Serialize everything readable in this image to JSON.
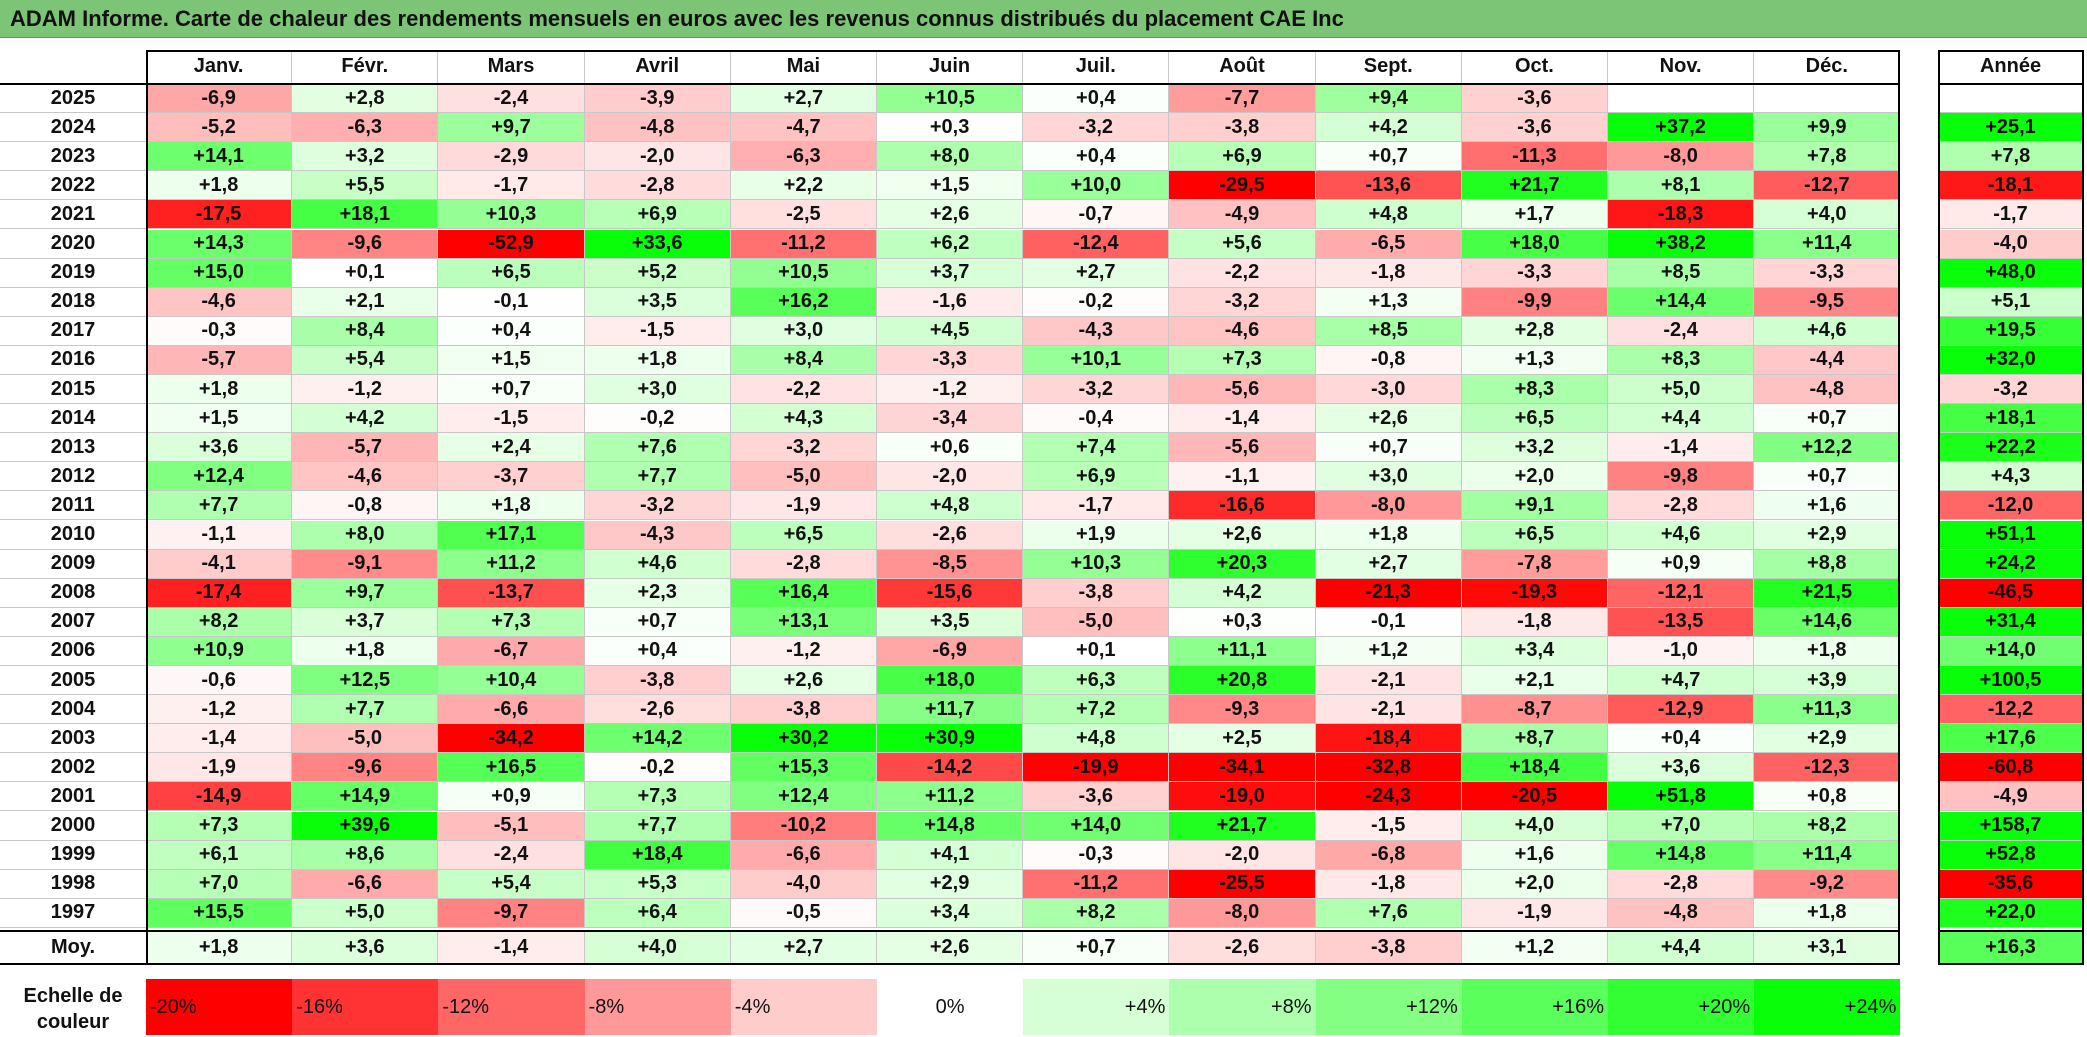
{
  "title": "ADAM Informe. Carte de chaleur des rendements mensuels en euros avec les revenus connus distribués du placement CAE Inc",
  "chart_data": {
    "type": "heatmap",
    "months": [
      "Janv.",
      "Févr.",
      "Mars",
      "Avril",
      "Mai",
      "Juin",
      "Juil.",
      "Août",
      "Sept.",
      "Oct.",
      "Nov.",
      "Déc."
    ],
    "year_header": "Année",
    "rows": [
      {
        "year": "2025",
        "values": [
          "-6,9",
          "+2,8",
          "-2,4",
          "-3,9",
          "+2,7",
          "+10,5",
          "+0,4",
          "-7,7",
          "+9,4",
          "-3,6",
          "",
          ""
        ],
        "annual": ""
      },
      {
        "year": "2024",
        "values": [
          "-5,2",
          "-6,3",
          "+9,7",
          "-4,8",
          "-4,7",
          "+0,3",
          "-3,2",
          "-3,8",
          "+4,2",
          "-3,6",
          "+37,2",
          "+9,9"
        ],
        "annual": "+25,1"
      },
      {
        "year": "2023",
        "values": [
          "+14,1",
          "+3,2",
          "-2,9",
          "-2,0",
          "-6,3",
          "+8,0",
          "+0,4",
          "+6,9",
          "+0,7",
          "-11,3",
          "-8,0",
          "+7,8"
        ],
        "annual": "+7,8"
      },
      {
        "year": "2022",
        "values": [
          "+1,8",
          "+5,5",
          "-1,7",
          "-2,8",
          "+2,2",
          "+1,5",
          "+10,0",
          "-29,5",
          "-13,6",
          "+21,7",
          "+8,1",
          "-12,7"
        ],
        "annual": "-18,1"
      },
      {
        "year": "2021",
        "values": [
          "-17,5",
          "+18,1",
          "+10,3",
          "+6,9",
          "-2,5",
          "+2,6",
          "-0,7",
          "-4,9",
          "+4,8",
          "+1,7",
          "-18,3",
          "+4,0"
        ],
        "annual": "-1,7"
      },
      {
        "year": "2020",
        "values": [
          "+14,3",
          "-9,6",
          "-52,9",
          "+33,6",
          "-11,2",
          "+6,2",
          "-12,4",
          "+5,6",
          "-6,5",
          "+18,0",
          "+38,2",
          "+11,4"
        ],
        "annual": "-4,0"
      },
      {
        "year": "2019",
        "values": [
          "+15,0",
          "+0,1",
          "+6,5",
          "+5,2",
          "+10,5",
          "+3,7",
          "+2,7",
          "-2,2",
          "-1,8",
          "-3,3",
          "+8,5",
          "-3,3"
        ],
        "annual": "+48,0"
      },
      {
        "year": "2018",
        "values": [
          "-4,6",
          "+2,1",
          "-0,1",
          "+3,5",
          "+16,2",
          "-1,6",
          "-0,2",
          "-3,2",
          "+1,3",
          "-9,9",
          "+14,4",
          "-9,5"
        ],
        "annual": "+5,1"
      },
      {
        "year": "2017",
        "values": [
          "-0,3",
          "+8,4",
          "+0,4",
          "-1,5",
          "+3,0",
          "+4,5",
          "-4,3",
          "-4,6",
          "+8,5",
          "+2,8",
          "-2,4",
          "+4,6"
        ],
        "annual": "+19,5"
      },
      {
        "year": "2016",
        "values": [
          "-5,7",
          "+5,4",
          "+1,5",
          "+1,8",
          "+8,4",
          "-3,3",
          "+10,1",
          "+7,3",
          "-0,8",
          "+1,3",
          "+8,3",
          "-4,4"
        ],
        "annual": "+32,0"
      },
      {
        "year": "2015",
        "values": [
          "+1,8",
          "-1,2",
          "+0,7",
          "+3,0",
          "-2,2",
          "-1,2",
          "-3,2",
          "-5,6",
          "-3,0",
          "+8,3",
          "+5,0",
          "-4,8"
        ],
        "annual": "-3,2"
      },
      {
        "year": "2014",
        "values": [
          "+1,5",
          "+4,2",
          "-1,5",
          "-0,2",
          "+4,3",
          "-3,4",
          "-0,4",
          "-1,4",
          "+2,6",
          "+6,5",
          "+4,4",
          "+0,7"
        ],
        "annual": "+18,1"
      },
      {
        "year": "2013",
        "values": [
          "+3,6",
          "-5,7",
          "+2,4",
          "+7,6",
          "-3,2",
          "+0,6",
          "+7,4",
          "-5,6",
          "+0,7",
          "+3,2",
          "-1,4",
          "+12,2"
        ],
        "annual": "+22,2"
      },
      {
        "year": "2012",
        "values": [
          "+12,4",
          "-4,6",
          "-3,7",
          "+7,7",
          "-5,0",
          "-2,0",
          "+6,9",
          "-1,1",
          "+3,0",
          "+2,0",
          "-9,8",
          "+0,7"
        ],
        "annual": "+4,3"
      },
      {
        "year": "2011",
        "values": [
          "+7,7",
          "-0,8",
          "+1,8",
          "-3,2",
          "-1,9",
          "+4,8",
          "-1,7",
          "-16,6",
          "-8,0",
          "+9,1",
          "-2,8",
          "+1,6"
        ],
        "annual": "-12,0"
      },
      {
        "year": "2010",
        "values": [
          "-1,1",
          "+8,0",
          "+17,1",
          "-4,3",
          "+6,5",
          "-2,6",
          "+1,9",
          "+2,6",
          "+1,8",
          "+6,5",
          "+4,6",
          "+2,9"
        ],
        "annual": "+51,1"
      },
      {
        "year": "2009",
        "values": [
          "-4,1",
          "-9,1",
          "+11,2",
          "+4,6",
          "-2,8",
          "-8,5",
          "+10,3",
          "+20,3",
          "+2,7",
          "-7,8",
          "+0,9",
          "+8,8"
        ],
        "annual": "+24,2"
      },
      {
        "year": "2008",
        "values": [
          "-17,4",
          "+9,7",
          "-13,7",
          "+2,3",
          "+16,4",
          "-15,6",
          "-3,8",
          "+4,2",
          "-21,3",
          "-19,3",
          "-12,1",
          "+21,5"
        ],
        "annual": "-46,5"
      },
      {
        "year": "2007",
        "values": [
          "+8,2",
          "+3,7",
          "+7,3",
          "+0,7",
          "+13,1",
          "+3,5",
          "-5,0",
          "+0,3",
          "-0,1",
          "-1,8",
          "-13,5",
          "+14,6"
        ],
        "annual": "+31,4"
      },
      {
        "year": "2006",
        "values": [
          "+10,9",
          "+1,8",
          "-6,7",
          "+0,4",
          "-1,2",
          "-6,9",
          "+0,1",
          "+11,1",
          "+1,2",
          "+3,4",
          "-1,0",
          "+1,8"
        ],
        "annual": "+14,0"
      },
      {
        "year": "2005",
        "values": [
          "-0,6",
          "+12,5",
          "+10,4",
          "-3,8",
          "+2,6",
          "+18,0",
          "+6,3",
          "+20,8",
          "-2,1",
          "+2,1",
          "+4,7",
          "+3,9"
        ],
        "annual": "+100,5"
      },
      {
        "year": "2004",
        "values": [
          "-1,2",
          "+7,7",
          "-6,6",
          "-2,6",
          "-3,8",
          "+11,7",
          "+7,2",
          "-9,3",
          "-2,1",
          "-8,7",
          "-12,9",
          "+11,3"
        ],
        "annual": "-12,2"
      },
      {
        "year": "2003",
        "values": [
          "-1,4",
          "-5,0",
          "-34,2",
          "+14,2",
          "+30,2",
          "+30,9",
          "+4,8",
          "+2,5",
          "-18,4",
          "+8,7",
          "+0,4",
          "+2,9"
        ],
        "annual": "+17,6"
      },
      {
        "year": "2002",
        "values": [
          "-1,9",
          "-9,6",
          "+16,5",
          "-0,2",
          "+15,3",
          "-14,2",
          "-19,9",
          "-34,1",
          "-32,8",
          "+18,4",
          "+3,6",
          "-12,3"
        ],
        "annual": "-60,8"
      },
      {
        "year": "2001",
        "values": [
          "-14,9",
          "+14,9",
          "+0,9",
          "+7,3",
          "+12,4",
          "+11,2",
          "-3,6",
          "-19,0",
          "-24,3",
          "-20,5",
          "+51,8",
          "+0,8"
        ],
        "annual": "-4,9"
      },
      {
        "year": "2000",
        "values": [
          "+7,3",
          "+39,6",
          "-5,1",
          "+7,7",
          "-10,2",
          "+14,8",
          "+14,0",
          "+21,7",
          "-1,5",
          "+4,0",
          "+7,0",
          "+8,2"
        ],
        "annual": "+158,7"
      },
      {
        "year": "1999",
        "values": [
          "+6,1",
          "+8,6",
          "-2,4",
          "+18,4",
          "-6,6",
          "+4,1",
          "-0,3",
          "-2,0",
          "-6,8",
          "+1,6",
          "+14,8",
          "+11,4"
        ],
        "annual": "+52,8"
      },
      {
        "year": "1998",
        "values": [
          "+7,0",
          "-6,6",
          "+5,4",
          "+5,3",
          "-4,0",
          "+2,9",
          "-11,2",
          "-25,5",
          "-1,8",
          "+2,0",
          "-2,8",
          "-9,2"
        ],
        "annual": "-35,6"
      },
      {
        "year": "1997",
        "values": [
          "+15,5",
          "+5,0",
          "-9,7",
          "+6,4",
          "-0,5",
          "+3,4",
          "+8,2",
          "-8,0",
          "+7,6",
          "-1,9",
          "-4,8",
          "+1,8"
        ],
        "annual": "+22,0"
      }
    ],
    "average": {
      "label": "Moy.",
      "values": [
        "+1,8",
        "+3,6",
        "-1,4",
        "+4,0",
        "+2,7",
        "+2,6",
        "+0,7",
        "-2,6",
        "-3,8",
        "+1,2",
        "+4,4",
        "+3,1"
      ],
      "annual": "+16,3"
    },
    "color_scale": {
      "label": "Echelle de couleur",
      "stops": [
        {
          "label": "-20%",
          "value": -20,
          "color": "#ff0000"
        },
        {
          "label": "-16%",
          "value": -16,
          "color": "#ff3333"
        },
        {
          "label": "-12%",
          "value": -12,
          "color": "#ff6666"
        },
        {
          "label": "-8%",
          "value": -8,
          "color": "#ff9999"
        },
        {
          "label": "-4%",
          "value": -4,
          "color": "#ffcccc"
        },
        {
          "label": "0%",
          "value": 0,
          "color": "#ffffff"
        },
        {
          "label": "+4%",
          "value": 4,
          "color": "#d6ffd6"
        },
        {
          "label": "+8%",
          "value": 8,
          "color": "#adffad"
        },
        {
          "label": "+12%",
          "value": 12,
          "color": "#84ff84"
        },
        {
          "label": "+16%",
          "value": 16,
          "color": "#5bff5b"
        },
        {
          "label": "+20%",
          "value": 20,
          "color": "#32ff32"
        },
        {
          "label": "+24%",
          "value": 24,
          "color": "#09ff09"
        }
      ]
    }
  }
}
